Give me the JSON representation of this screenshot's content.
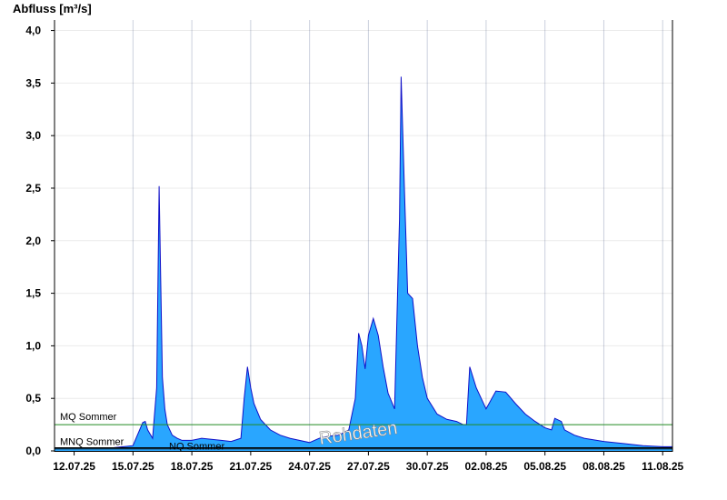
{
  "chart_data": {
    "type": "area",
    "ylabel": "Abfluss [m³/s]",
    "ylim": [
      0,
      4.1
    ],
    "xlim": [
      "2025-07-11T00:00",
      "2025-08-11T12:00"
    ],
    "y_ticks": [
      0.0,
      0.5,
      1.0,
      1.5,
      2.0,
      2.5,
      3.0,
      3.5,
      4.0
    ],
    "y_tick_labels": [
      "0,0",
      "0,5",
      "1,0",
      "1,5",
      "2,0",
      "2,5",
      "3,0",
      "3,5",
      "4,0"
    ],
    "x_tick_labels": [
      "12.07.25",
      "15.07.25",
      "18.07.25",
      "21.07.25",
      "24.07.25",
      "27.07.25",
      "30.07.25",
      "02.08.25",
      "05.08.25",
      "08.08.25",
      "11.08.25"
    ],
    "x_ticks": [
      "2025-07-12",
      "2025-07-15",
      "2025-07-18",
      "2025-07-21",
      "2025-07-24",
      "2025-07-27",
      "2025-07-30",
      "2025-08-02",
      "2025-08-05",
      "2025-08-08",
      "2025-08-11"
    ],
    "grid": true,
    "fill_color": "#29a6ff",
    "line_color": "#1010c8",
    "watermark": "Rohdaten",
    "reference_lines": [
      {
        "label": "MQ Sommer",
        "value": 0.25,
        "color": "#228b22"
      },
      {
        "label": "MNQ Sommer",
        "value": 0.03,
        "color": "#000000"
      },
      {
        "label": "NQ Sommer",
        "value": 0.02,
        "color": "#000000"
      }
    ],
    "series": [
      {
        "x": [
          "2025-07-11T00:00",
          "2025-07-12T00:00",
          "2025-07-13T00:00",
          "2025-07-14T00:00",
          "2025-07-14T12:00",
          "2025-07-15T00:00",
          "2025-07-15T12:00",
          "2025-07-15T15:00",
          "2025-07-15T18:00",
          "2025-07-16T00:00",
          "2025-07-16T05:00",
          "2025-07-16T08:00",
          "2025-07-16T10:00",
          "2025-07-16T12:00",
          "2025-07-16T15:00",
          "2025-07-16T18:00",
          "2025-07-17T00:00",
          "2025-07-17T06:00",
          "2025-07-17T12:00",
          "2025-07-18T00:00",
          "2025-07-18T12:00",
          "2025-07-19T00:00",
          "2025-07-19T12:00",
          "2025-07-20T00:00",
          "2025-07-20T12:00",
          "2025-07-20T16:00",
          "2025-07-20T20:00",
          "2025-07-21T00:00",
          "2025-07-21T04:00",
          "2025-07-21T12:00",
          "2025-07-22T00:00",
          "2025-07-22T12:00",
          "2025-07-23T00:00",
          "2025-07-24T00:00",
          "2025-07-24T12:00",
          "2025-07-25T00:00",
          "2025-07-25T12:00",
          "2025-07-26T00:00",
          "2025-07-26T08:00",
          "2025-07-26T12:00",
          "2025-07-26T16:00",
          "2025-07-26T20:00",
          "2025-07-27T00:00",
          "2025-07-27T06:00",
          "2025-07-27T12:00",
          "2025-07-27T18:00",
          "2025-07-28T00:00",
          "2025-07-28T08:00",
          "2025-07-28T14:00",
          "2025-07-28T16:00",
          "2025-07-28T20:00",
          "2025-07-29T00:00",
          "2025-07-29T06:00",
          "2025-07-29T12:00",
          "2025-07-29T18:00",
          "2025-07-30T00:00",
          "2025-07-30T12:00",
          "2025-07-31T00:00",
          "2025-07-31T12:00",
          "2025-07-31T20:00",
          "2025-08-01T00:00",
          "2025-08-01T04:00",
          "2025-08-01T12:00",
          "2025-08-02T00:00",
          "2025-08-02T12:00",
          "2025-08-03T00:00",
          "2025-08-03T12:00",
          "2025-08-04T00:00",
          "2025-08-04T12:00",
          "2025-08-05T00:00",
          "2025-08-05T08:00",
          "2025-08-05T12:00",
          "2025-08-05T20:00",
          "2025-08-06T00:00",
          "2025-08-06T12:00",
          "2025-08-07T00:00",
          "2025-08-08T00:00",
          "2025-08-09T00:00",
          "2025-08-10T00:00",
          "2025-08-11T00:00",
          "2025-08-11T12:00"
        ],
        "y": [
          0.03,
          0.03,
          0.03,
          0.03,
          0.04,
          0.05,
          0.27,
          0.28,
          0.2,
          0.12,
          0.6,
          2.52,
          1.6,
          0.7,
          0.4,
          0.25,
          0.15,
          0.12,
          0.1,
          0.1,
          0.12,
          0.11,
          0.1,
          0.09,
          0.12,
          0.5,
          0.8,
          0.6,
          0.45,
          0.3,
          0.2,
          0.15,
          0.12,
          0.08,
          0.12,
          0.14,
          0.15,
          0.2,
          0.5,
          1.12,
          1.0,
          0.78,
          1.1,
          1.26,
          1.1,
          0.8,
          0.55,
          0.4,
          2.2,
          3.56,
          2.5,
          1.5,
          1.45,
          1.0,
          0.7,
          0.5,
          0.35,
          0.3,
          0.28,
          0.25,
          0.25,
          0.8,
          0.6,
          0.4,
          0.57,
          0.56,
          0.45,
          0.35,
          0.28,
          0.22,
          0.2,
          0.31,
          0.28,
          0.2,
          0.15,
          0.12,
          0.09,
          0.07,
          0.05,
          0.04,
          0.04
        ]
      }
    ]
  }
}
